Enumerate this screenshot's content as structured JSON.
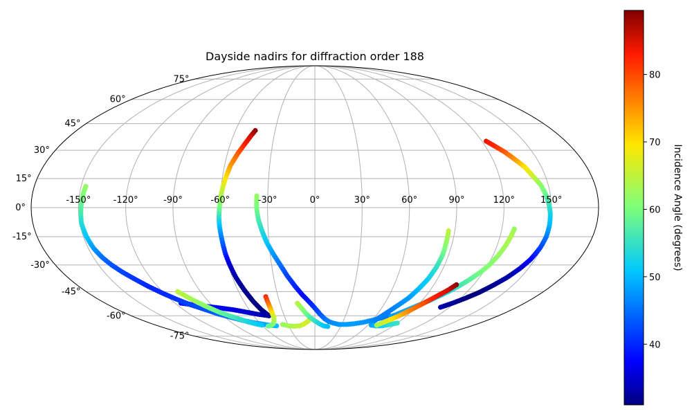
{
  "chart_data": {
    "type": "scatter",
    "projection": "mollweide",
    "title": "Dayside nadirs for diffraction order 188",
    "x_ticks": [
      "-150°",
      "-120°",
      "-90°",
      "-60°",
      "-30°",
      "0°",
      "30°",
      "60°",
      "90°",
      "120°",
      "150°"
    ],
    "x_tick_values": [
      -150,
      -120,
      -90,
      -60,
      -30,
      0,
      30,
      60,
      90,
      120,
      150
    ],
    "y_ticks": [
      "75°",
      "60°",
      "45°",
      "30°",
      "15°",
      "0°",
      "-15°",
      "-30°",
      "-45°",
      "-60°",
      "-75°"
    ],
    "y_tick_values": [
      75,
      60,
      45,
      30,
      15,
      0,
      -15,
      -30,
      -45,
      -60,
      -75
    ],
    "grid": true,
    "colorbar": {
      "label": "Incidence Angle (degrees)",
      "colormap": "jet",
      "range": [
        31,
        89.5
      ],
      "ticks": [
        40,
        50,
        60,
        70,
        80
      ],
      "tick_labels": [
        "40",
        "50",
        "60",
        "70",
        "80"
      ]
    },
    "tracks": [
      {
        "points": [
          [
            -45,
            41,
            89
          ],
          [
            -47,
            38,
            86
          ],
          [
            -50,
            33,
            83
          ],
          [
            -53,
            28,
            79
          ],
          [
            -56,
            22,
            75
          ],
          [
            -58,
            15,
            70
          ],
          [
            -59.5,
            8,
            65
          ],
          [
            -60.5,
            0,
            60
          ],
          [
            -61,
            -5,
            55
          ],
          [
            -61,
            -10,
            50
          ],
          [
            -60.5,
            -17,
            45
          ],
          [
            -60,
            -24,
            40
          ],
          [
            -59,
            -30,
            35
          ],
          [
            -57.5,
            -37,
            33
          ],
          [
            -55,
            -44,
            32
          ],
          [
            -52,
            -51,
            31
          ],
          [
            -49,
            -56,
            31
          ],
          [
            -45,
            -60,
            32
          ]
        ]
      },
      {
        "points": [
          [
            -45,
            -60,
            32
          ],
          [
            -55,
            -59,
            34
          ],
          [
            -65,
            -57.5,
            35
          ],
          [
            -75,
            -56,
            36
          ],
          [
            -85,
            -55,
            37
          ],
          [
            -95,
            -54,
            38
          ],
          [
            -105,
            -53,
            38.5
          ],
          [
            -115,
            -52,
            39
          ]
        ]
      },
      {
        "points": [
          [
            -147,
            11,
            62
          ],
          [
            -148,
            5,
            60
          ],
          [
            -148.5,
            -2,
            57
          ],
          [
            -149,
            -8,
            54
          ],
          [
            -148,
            -15,
            51
          ],
          [
            -146.5,
            -21,
            48
          ],
          [
            -144,
            -26,
            45
          ],
          [
            -141,
            -30,
            43
          ],
          [
            -137,
            -34,
            42
          ],
          [
            -132,
            -38,
            41
          ],
          [
            -127,
            -42,
            40
          ],
          [
            -121,
            -46,
            40
          ],
          [
            -115,
            -49.5,
            41
          ],
          [
            -108,
            -53,
            42
          ],
          [
            -100,
            -56,
            43
          ],
          [
            -92,
            -59,
            44
          ],
          [
            -84,
            -61,
            45
          ],
          [
            -76,
            -63,
            46
          ],
          [
            -68,
            -64.5,
            47
          ],
          [
            -60,
            -65.5,
            48
          ],
          [
            -52,
            -66.5,
            49
          ],
          [
            -44,
            -67,
            50
          ]
        ]
      },
      {
        "points": [
          [
            -108,
            -45,
            65
          ],
          [
            -102,
            -50,
            63
          ],
          [
            -96,
            -54,
            61
          ],
          [
            -90,
            -57.5,
            59
          ],
          [
            -84,
            -60,
            57
          ],
          [
            -78,
            -62,
            55
          ],
          [
            -72,
            -64,
            53
          ],
          [
            -66,
            -65.5,
            52
          ],
          [
            -60,
            -66.5,
            51
          ]
        ]
      },
      {
        "points": [
          [
            -40,
            -48,
            82
          ],
          [
            -40,
            -52,
            78
          ],
          [
            -40,
            -55,
            74
          ],
          [
            -40.5,
            -58,
            70
          ],
          [
            -41,
            -61,
            66
          ],
          [
            -43,
            -63.5,
            64
          ],
          [
            -46,
            -65.5,
            62
          ],
          [
            -50,
            -66.8,
            60
          ],
          [
            -54,
            -67.2,
            59
          ]
        ]
      },
      {
        "points": [
          [
            -36,
            -66,
            62
          ],
          [
            -30,
            -67,
            63
          ],
          [
            -24,
            -67.3,
            64
          ],
          [
            -18,
            -67,
            65
          ],
          [
            -13,
            -66,
            66
          ],
          [
            -9,
            -64.5,
            67
          ],
          [
            -6,
            -63,
            66
          ]
        ]
      },
      {
        "points": [
          [
            -37,
            6,
            62
          ],
          [
            -37,
            0,
            60
          ],
          [
            -36,
            -6,
            57
          ],
          [
            -34,
            -12,
            54
          ],
          [
            -31.5,
            -18,
            51
          ],
          [
            -28,
            -24,
            48
          ],
          [
            -24,
            -30,
            45
          ],
          [
            -20,
            -36,
            42
          ],
          [
            -15,
            -42,
            40
          ],
          [
            -10,
            -47,
            38
          ],
          [
            -5,
            -51,
            39
          ],
          [
            0,
            -55,
            41
          ],
          [
            5,
            -59,
            43
          ],
          [
            10,
            -62,
            45
          ],
          [
            15,
            -64,
            46
          ],
          [
            20,
            -65,
            47
          ],
          [
            27,
            -66,
            47.5
          ],
          [
            35,
            -66,
            48
          ],
          [
            43,
            -65.5,
            48
          ],
          [
            52,
            -64.5,
            47.5
          ],
          [
            60,
            -63,
            47
          ],
          [
            67,
            -61.5,
            46
          ],
          [
            73,
            -60,
            45
          ]
        ]
      },
      {
        "points": [
          [
            -15,
            -52,
            65
          ],
          [
            -12,
            -55,
            62
          ],
          [
            -9,
            -58,
            60
          ],
          [
            -5,
            -61,
            57
          ],
          [
            0,
            -63.5,
            55
          ],
          [
            5,
            -65.5,
            53
          ],
          [
            10,
            -67,
            51
          ],
          [
            15,
            -67.5,
            50
          ]
        ]
      },
      {
        "points": [
          [
            86,
            -12,
            65
          ],
          [
            86,
            -18,
            62
          ],
          [
            86,
            -24,
            59
          ],
          [
            85,
            -31,
            55
          ],
          [
            83,
            -38,
            52
          ],
          [
            80,
            -44,
            50
          ],
          [
            77,
            -49,
            48
          ],
          [
            73,
            -53,
            47
          ],
          [
            69,
            -57,
            46
          ],
          [
            66,
            -60,
            46
          ],
          [
            63,
            -63,
            46
          ],
          [
            62,
            -65,
            47
          ],
          [
            64,
            -66.5,
            48
          ],
          [
            70,
            -67,
            50
          ],
          [
            77,
            -67,
            52
          ],
          [
            84,
            -66,
            54
          ],
          [
            90,
            -65,
            55
          ]
        ]
      },
      {
        "points": [
          [
            128,
            -11,
            62
          ],
          [
            127,
            -15,
            64
          ],
          [
            125.5,
            -20,
            63
          ],
          [
            123.5,
            -25,
            62
          ],
          [
            121,
            -30,
            61
          ],
          [
            118,
            -34,
            60
          ],
          [
            114,
            -38,
            58
          ],
          [
            110,
            -41.5,
            56
          ],
          [
            106,
            -44.5,
            54
          ],
          [
            101,
            -47.5,
            52
          ],
          [
            96,
            -50.5,
            51
          ],
          [
            90,
            -53.5,
            50
          ],
          [
            84,
            -56.5,
            49
          ],
          [
            79,
            -59,
            48
          ],
          [
            75,
            -60.5,
            48
          ]
        ]
      },
      {
        "points": [
          [
            107,
            -41,
            89
          ],
          [
            104,
            -44,
            86
          ],
          [
            100,
            -47,
            84
          ],
          [
            96,
            -50,
            82
          ],
          [
            92,
            -53,
            79
          ],
          [
            88,
            -56,
            77
          ],
          [
            84,
            -59,
            74
          ],
          [
            80,
            -61.5,
            71
          ],
          [
            76,
            -63.5,
            68
          ],
          [
            72,
            -65.5,
            65
          ],
          [
            70,
            -66.5,
            63
          ]
        ]
      },
      {
        "points": [
          [
            123,
            35,
            84
          ],
          [
            127,
            32,
            82
          ],
          [
            131,
            29,
            79
          ],
          [
            135,
            25,
            75
          ],
          [
            139,
            21,
            70
          ],
          [
            142,
            16,
            66
          ],
          [
            145,
            12,
            62
          ],
          [
            147,
            7,
            59
          ],
          [
            148.5,
            2,
            56
          ],
          [
            149.5,
            -3,
            53
          ],
          [
            150,
            -9,
            50
          ],
          [
            150,
            -15,
            46
          ],
          [
            149,
            -21,
            42
          ],
          [
            147,
            -27,
            38
          ],
          [
            144,
            -32,
            35
          ],
          [
            140,
            -37,
            33
          ],
          [
            135,
            -41.5,
            32
          ],
          [
            130,
            -45.5,
            31
          ],
          [
            124,
            -49,
            31
          ],
          [
            118,
            -52,
            32
          ],
          [
            112,
            -54.5,
            33
          ]
        ]
      }
    ]
  }
}
